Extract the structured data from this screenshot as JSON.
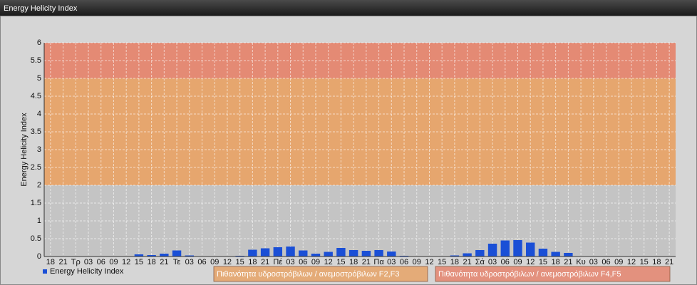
{
  "chart_data": {
    "type": "bar",
    "title": "Energy Helicity Index",
    "y_label": "Energy Helicity Index",
    "categories": [
      "18",
      "21",
      "Τρ",
      "03",
      "06",
      "09",
      "12",
      "15",
      "18",
      "21",
      "Τε",
      "03",
      "06",
      "09",
      "12",
      "15",
      "18",
      "21",
      "Πέ",
      "03",
      "06",
      "09",
      "12",
      "15",
      "18",
      "21",
      "Πα",
      "03",
      "06",
      "09",
      "12",
      "15",
      "18",
      "21",
      "Σά",
      "03",
      "06",
      "09",
      "12",
      "15",
      "18",
      "21",
      "Κυ",
      "03",
      "06",
      "09",
      "12",
      "15",
      "18",
      "21"
    ],
    "series": [
      {
        "name": "Energy Helicity Index",
        "color": "#1a4fd6",
        "values": [
          0.01,
          0.01,
          0.01,
          0.01,
          0.01,
          0.01,
          0.01,
          0.06,
          0.04,
          0.08,
          0.17,
          0.03,
          0.01,
          0.01,
          0.01,
          0.02,
          0.19,
          0.23,
          0.26,
          0.28,
          0.17,
          0.08,
          0.13,
          0.24,
          0.18,
          0.16,
          0.18,
          0.14,
          0.02,
          0.01,
          0.01,
          0.01,
          0.03,
          0.09,
          0.18,
          0.36,
          0.45,
          0.46,
          0.39,
          0.22,
          0.13,
          0.1,
          0.01,
          0.01,
          0.01,
          0.01,
          0.01,
          0.01,
          0.01,
          0.01
        ]
      }
    ],
    "bands": [
      {
        "name": "Πιθανότητα υδροστρόβιλων / ανεμοστρόβιλων F2,F3",
        "from": 2,
        "to": 5,
        "color": "#e6a66e"
      },
      {
        "name": "Πιθανότητα υδροστρόβιλων / ανεμοστρόβιλων F4,F5",
        "from": 5,
        "to": 6,
        "color": "#e48a74"
      }
    ],
    "ylim": [
      0,
      6
    ],
    "yticks": [
      0,
      0.5,
      1,
      1.5,
      2,
      2.5,
      3,
      3.5,
      4,
      4.5,
      5,
      5.5,
      6
    ],
    "grid": true
  }
}
